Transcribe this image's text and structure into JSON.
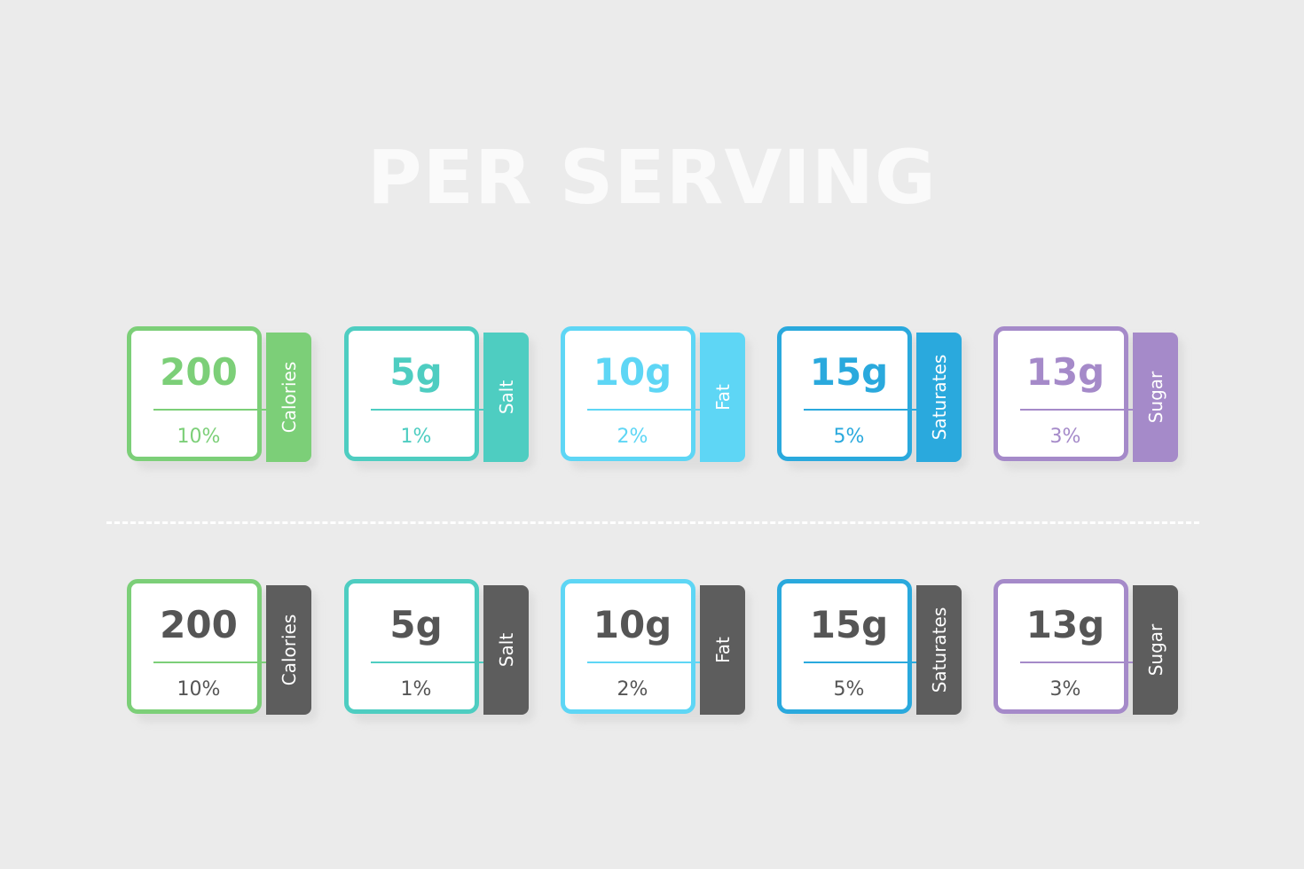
{
  "title": "PER SERVING",
  "colors": {
    "background": "#ebebeb",
    "title": "#fafafa",
    "dark_tab": "#5d5d5d",
    "dark_text": "#555555",
    "nutrients": [
      "#7ccf78",
      "#4ecdc1",
      "#5ed6f5",
      "#2aa9dd",
      "#a58ac9"
    ]
  },
  "rows": [
    {
      "style": "colored",
      "cards": [
        {
          "value": "200",
          "percent": "10%",
          "label": "Calories"
        },
        {
          "value": "5g",
          "percent": "1%",
          "label": "Salt"
        },
        {
          "value": "10g",
          "percent": "2%",
          "label": "Fat"
        },
        {
          "value": "15g",
          "percent": "5%",
          "label": "Saturates"
        },
        {
          "value": "13g",
          "percent": "3%",
          "label": "Sugar"
        }
      ]
    },
    {
      "style": "dark",
      "cards": [
        {
          "value": "200",
          "percent": "10%",
          "label": "Calories"
        },
        {
          "value": "5g",
          "percent": "1%",
          "label": "Salt"
        },
        {
          "value": "10g",
          "percent": "2%",
          "label": "Fat"
        },
        {
          "value": "15g",
          "percent": "5%",
          "label": "Saturates"
        },
        {
          "value": "13g",
          "percent": "3%",
          "label": "Sugar"
        }
      ]
    }
  ]
}
